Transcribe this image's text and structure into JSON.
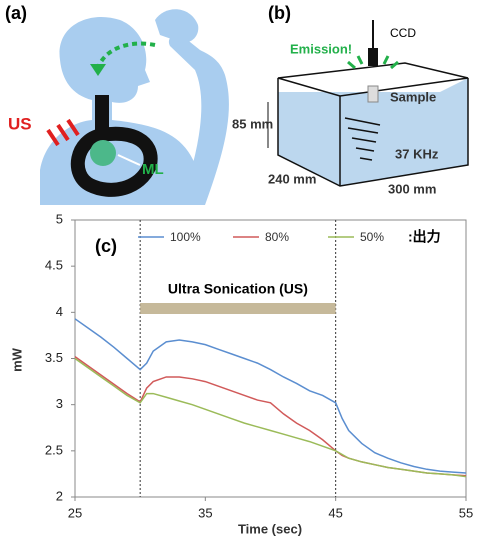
{
  "panels": {
    "a": {
      "label": "(a)",
      "us": "US",
      "ml": "ML"
    },
    "b": {
      "label": "(b)",
      "ccd": "CCD",
      "emission": "Emission!",
      "sample": "Sample",
      "height": "85 mm",
      "depth": "240 mm",
      "width": "300 mm",
      "frequency": "37 KHz"
    }
  },
  "chart_data": {
    "type": "line",
    "panel_label": "(c)",
    "x_label": "Time (sec)",
    "y_label": "mW",
    "x": [
      25,
      26,
      27,
      28,
      29,
      30,
      30.5,
      31,
      32,
      33,
      34,
      35,
      36,
      37,
      38,
      39,
      40,
      41,
      42,
      43,
      44,
      45,
      45.5,
      46,
      47,
      48,
      49,
      50,
      51,
      52,
      53,
      54,
      55
    ],
    "series": [
      {
        "name": "100%",
        "color": "#5b8ed0",
        "values": [
          3.93,
          3.83,
          3.73,
          3.62,
          3.5,
          3.38,
          3.45,
          3.58,
          3.68,
          3.7,
          3.68,
          3.65,
          3.6,
          3.55,
          3.5,
          3.45,
          3.38,
          3.3,
          3.23,
          3.15,
          3.1,
          3.02,
          2.85,
          2.72,
          2.58,
          2.48,
          2.42,
          2.37,
          2.33,
          2.3,
          2.28,
          2.27,
          2.26
        ]
      },
      {
        "name": "80%",
        "color": "#d15a5a",
        "values": [
          3.52,
          3.42,
          3.32,
          3.22,
          3.12,
          3.03,
          3.18,
          3.25,
          3.3,
          3.3,
          3.28,
          3.25,
          3.2,
          3.15,
          3.1,
          3.05,
          3.02,
          2.9,
          2.8,
          2.72,
          2.62,
          2.5,
          2.45,
          2.42,
          2.38,
          2.35,
          2.32,
          2.3,
          2.28,
          2.26,
          2.25,
          2.24,
          2.23
        ]
      },
      {
        "name": "50%",
        "color": "#9bbb59",
        "values": [
          3.5,
          3.4,
          3.3,
          3.2,
          3.1,
          3.02,
          3.12,
          3.12,
          3.08,
          3.04,
          3.0,
          2.95,
          2.9,
          2.85,
          2.8,
          2.76,
          2.72,
          2.68,
          2.64,
          2.6,
          2.55,
          2.5,
          2.46,
          2.42,
          2.38,
          2.35,
          2.32,
          2.3,
          2.28,
          2.26,
          2.25,
          2.24,
          2.22
        ]
      }
    ],
    "legend_note": ":出力",
    "annotation": {
      "text": "Ultra Sonication (US)",
      "x": [
        30,
        45
      ],
      "color": "#c6b99a"
    },
    "xlim": [
      25,
      55
    ],
    "xticks": [
      25,
      35,
      45,
      55
    ],
    "ylim": [
      2,
      5
    ],
    "yticks": [
      2,
      2.5,
      3,
      3.5,
      4,
      4.5,
      5
    ]
  }
}
